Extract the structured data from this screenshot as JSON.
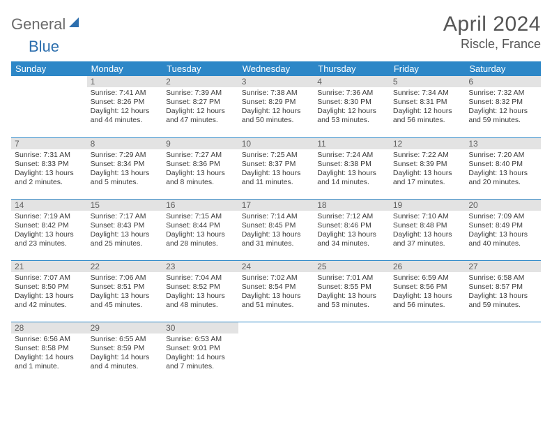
{
  "brand": {
    "part1": "General",
    "part2": "Blue"
  },
  "title": "April 2024",
  "location": "Riscle, France",
  "weekdays": [
    "Sunday",
    "Monday",
    "Tuesday",
    "Wednesday",
    "Thursday",
    "Friday",
    "Saturday"
  ],
  "colors": {
    "header_bg": "#2d87c7",
    "header_text": "#ffffff",
    "daynum_bg": "#e3e3e3",
    "row_border": "#2d87c7",
    "logo_gray": "#6a6a6a",
    "logo_blue": "#2d6fae"
  },
  "weeks": [
    [
      {
        "n": "",
        "sr": "",
        "ss": "",
        "dl": "",
        "empty": true
      },
      {
        "n": "1",
        "sr": "Sunrise: 7:41 AM",
        "ss": "Sunset: 8:26 PM",
        "dl": "Daylight: 12 hours and 44 minutes."
      },
      {
        "n": "2",
        "sr": "Sunrise: 7:39 AM",
        "ss": "Sunset: 8:27 PM",
        "dl": "Daylight: 12 hours and 47 minutes."
      },
      {
        "n": "3",
        "sr": "Sunrise: 7:38 AM",
        "ss": "Sunset: 8:29 PM",
        "dl": "Daylight: 12 hours and 50 minutes."
      },
      {
        "n": "4",
        "sr": "Sunrise: 7:36 AM",
        "ss": "Sunset: 8:30 PM",
        "dl": "Daylight: 12 hours and 53 minutes."
      },
      {
        "n": "5",
        "sr": "Sunrise: 7:34 AM",
        "ss": "Sunset: 8:31 PM",
        "dl": "Daylight: 12 hours and 56 minutes."
      },
      {
        "n": "6",
        "sr": "Sunrise: 7:32 AM",
        "ss": "Sunset: 8:32 PM",
        "dl": "Daylight: 12 hours and 59 minutes."
      }
    ],
    [
      {
        "n": "7",
        "sr": "Sunrise: 7:31 AM",
        "ss": "Sunset: 8:33 PM",
        "dl": "Daylight: 13 hours and 2 minutes."
      },
      {
        "n": "8",
        "sr": "Sunrise: 7:29 AM",
        "ss": "Sunset: 8:34 PM",
        "dl": "Daylight: 13 hours and 5 minutes."
      },
      {
        "n": "9",
        "sr": "Sunrise: 7:27 AM",
        "ss": "Sunset: 8:36 PM",
        "dl": "Daylight: 13 hours and 8 minutes."
      },
      {
        "n": "10",
        "sr": "Sunrise: 7:25 AM",
        "ss": "Sunset: 8:37 PM",
        "dl": "Daylight: 13 hours and 11 minutes."
      },
      {
        "n": "11",
        "sr": "Sunrise: 7:24 AM",
        "ss": "Sunset: 8:38 PM",
        "dl": "Daylight: 13 hours and 14 minutes."
      },
      {
        "n": "12",
        "sr": "Sunrise: 7:22 AM",
        "ss": "Sunset: 8:39 PM",
        "dl": "Daylight: 13 hours and 17 minutes."
      },
      {
        "n": "13",
        "sr": "Sunrise: 7:20 AM",
        "ss": "Sunset: 8:40 PM",
        "dl": "Daylight: 13 hours and 20 minutes."
      }
    ],
    [
      {
        "n": "14",
        "sr": "Sunrise: 7:19 AM",
        "ss": "Sunset: 8:42 PM",
        "dl": "Daylight: 13 hours and 23 minutes."
      },
      {
        "n": "15",
        "sr": "Sunrise: 7:17 AM",
        "ss": "Sunset: 8:43 PM",
        "dl": "Daylight: 13 hours and 25 minutes."
      },
      {
        "n": "16",
        "sr": "Sunrise: 7:15 AM",
        "ss": "Sunset: 8:44 PM",
        "dl": "Daylight: 13 hours and 28 minutes."
      },
      {
        "n": "17",
        "sr": "Sunrise: 7:14 AM",
        "ss": "Sunset: 8:45 PM",
        "dl": "Daylight: 13 hours and 31 minutes."
      },
      {
        "n": "18",
        "sr": "Sunrise: 7:12 AM",
        "ss": "Sunset: 8:46 PM",
        "dl": "Daylight: 13 hours and 34 minutes."
      },
      {
        "n": "19",
        "sr": "Sunrise: 7:10 AM",
        "ss": "Sunset: 8:48 PM",
        "dl": "Daylight: 13 hours and 37 minutes."
      },
      {
        "n": "20",
        "sr": "Sunrise: 7:09 AM",
        "ss": "Sunset: 8:49 PM",
        "dl": "Daylight: 13 hours and 40 minutes."
      }
    ],
    [
      {
        "n": "21",
        "sr": "Sunrise: 7:07 AM",
        "ss": "Sunset: 8:50 PM",
        "dl": "Daylight: 13 hours and 42 minutes."
      },
      {
        "n": "22",
        "sr": "Sunrise: 7:06 AM",
        "ss": "Sunset: 8:51 PM",
        "dl": "Daylight: 13 hours and 45 minutes."
      },
      {
        "n": "23",
        "sr": "Sunrise: 7:04 AM",
        "ss": "Sunset: 8:52 PM",
        "dl": "Daylight: 13 hours and 48 minutes."
      },
      {
        "n": "24",
        "sr": "Sunrise: 7:02 AM",
        "ss": "Sunset: 8:54 PM",
        "dl": "Daylight: 13 hours and 51 minutes."
      },
      {
        "n": "25",
        "sr": "Sunrise: 7:01 AM",
        "ss": "Sunset: 8:55 PM",
        "dl": "Daylight: 13 hours and 53 minutes."
      },
      {
        "n": "26",
        "sr": "Sunrise: 6:59 AM",
        "ss": "Sunset: 8:56 PM",
        "dl": "Daylight: 13 hours and 56 minutes."
      },
      {
        "n": "27",
        "sr": "Sunrise: 6:58 AM",
        "ss": "Sunset: 8:57 PM",
        "dl": "Daylight: 13 hours and 59 minutes."
      }
    ],
    [
      {
        "n": "28",
        "sr": "Sunrise: 6:56 AM",
        "ss": "Sunset: 8:58 PM",
        "dl": "Daylight: 14 hours and 1 minute."
      },
      {
        "n": "29",
        "sr": "Sunrise: 6:55 AM",
        "ss": "Sunset: 8:59 PM",
        "dl": "Daylight: 14 hours and 4 minutes."
      },
      {
        "n": "30",
        "sr": "Sunrise: 6:53 AM",
        "ss": "Sunset: 9:01 PM",
        "dl": "Daylight: 14 hours and 7 minutes."
      },
      {
        "n": "",
        "sr": "",
        "ss": "",
        "dl": "",
        "empty": true
      },
      {
        "n": "",
        "sr": "",
        "ss": "",
        "dl": "",
        "empty": true
      },
      {
        "n": "",
        "sr": "",
        "ss": "",
        "dl": "",
        "empty": true
      },
      {
        "n": "",
        "sr": "",
        "ss": "",
        "dl": "",
        "empty": true
      }
    ]
  ]
}
